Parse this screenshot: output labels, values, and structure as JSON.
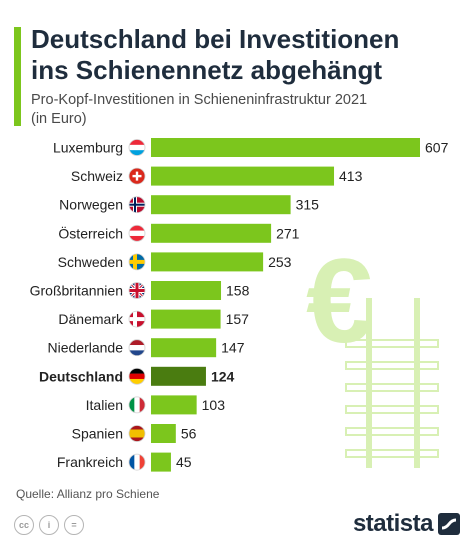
{
  "header": {
    "title_line1": "Deutschland bei Investitionen",
    "title_line2": "ins Schienennetz abgehängt",
    "subtitle_line1": "Pro-Kopf-Investitionen in Schieneninfrastruktur 2021",
    "subtitle_line2": "(in Euro)"
  },
  "chart_data": {
    "type": "bar",
    "orientation": "horizontal",
    "categories": [
      "Luxemburg",
      "Schweiz",
      "Norwegen",
      "Österreich",
      "Schweden",
      "Großbritannien",
      "Dänemark",
      "Niederlande",
      "Deutschland",
      "Italien",
      "Spanien",
      "Frankreich"
    ],
    "values": [
      607,
      413,
      315,
      271,
      253,
      158,
      157,
      147,
      124,
      103,
      56,
      45
    ],
    "highlight": "Deutschland",
    "flags": [
      "flag-luxembourg",
      "flag-switzerland",
      "flag-norway",
      "flag-austria",
      "flag-sweden",
      "flag-uk",
      "flag-denmark",
      "flag-netherlands",
      "flag-germany",
      "flag-italy",
      "flag-spain",
      "flag-france"
    ],
    "colors": {
      "bar": "#7cc61d",
      "highlight": "#4a7c10",
      "decoration": "#d8f0b4"
    }
  },
  "footer": {
    "source": "Quelle: Allianz pro Schiene",
    "brand": "statista",
    "cc_icons": [
      "cc-icon",
      "person-icon",
      "equals-icon"
    ],
    "cc_labels": [
      "cc",
      "i",
      "="
    ]
  }
}
